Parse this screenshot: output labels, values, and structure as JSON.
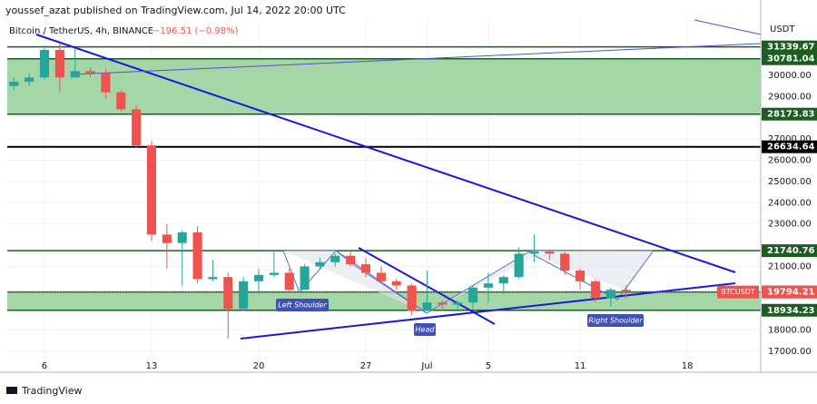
{
  "chart_data": {
    "type": "candlestick",
    "title": "youssef_azat published on TradingView.com, Jul 14, 2022 20:00 UTC",
    "symbol": "Bitcoin / TetherUS, 4h, BINANCE",
    "change": "−196.51 (−0.98%)",
    "currency": "USDT",
    "footer": "TradingView",
    "up_color": "#26a69a",
    "down_color": "#ef5350",
    "x": [
      4,
      5,
      6,
      7,
      8,
      9,
      10,
      11,
      12,
      13,
      14,
      15,
      16,
      17,
      18,
      19,
      20,
      21,
      22,
      23,
      24,
      25,
      26,
      27,
      28,
      29,
      30,
      31,
      32,
      33,
      34,
      35,
      36,
      37,
      38,
      39,
      40,
      41,
      42,
      43,
      44
    ],
    "open": [
      29500,
      29700,
      29900,
      31200,
      29900,
      30200,
      30100,
      29200,
      28400,
      26700,
      22500,
      22100,
      22600,
      20400,
      20500,
      19000,
      20300,
      20600,
      20700,
      19900,
      21000,
      21200,
      21500,
      21100,
      20700,
      20300,
      20100,
      18900,
      19300,
      19200,
      19300,
      20000,
      20200,
      20500,
      21600,
      21700,
      21600,
      20800,
      20300,
      19500,
      19900
    ],
    "high": [
      29900,
      30100,
      31400,
      31500,
      31300,
      30400,
      30300,
      29300,
      28600,
      26900,
      23000,
      22700,
      22900,
      21300,
      20700,
      20500,
      20900,
      21700,
      20900,
      21100,
      21400,
      21600,
      21700,
      21400,
      21000,
      20400,
      20200,
      20800,
      19400,
      19400,
      20100,
      20700,
      20600,
      21900,
      22500,
      21800,
      21700,
      20900,
      20400,
      20000,
      20100
    ],
    "low": [
      29300,
      29500,
      29800,
      29200,
      29900,
      29900,
      28900,
      28300,
      26600,
      22200,
      20900,
      20100,
      20200,
      20300,
      17600,
      18900,
      19700,
      20500,
      19800,
      19900,
      20900,
      21000,
      21000,
      20500,
      20200,
      19900,
      18700,
      18900,
      18900,
      19000,
      19000,
      19300,
      19700,
      20400,
      21200,
      21300,
      20600,
      19900,
      19300,
      19100,
      19500
    ],
    "close": [
      29700,
      29900,
      31200,
      29900,
      30200,
      30100,
      29200,
      28400,
      26700,
      22500,
      22100,
      22600,
      20400,
      20500,
      19000,
      20300,
      20600,
      20700,
      19900,
      21000,
      21200,
      21500,
      21100,
      20700,
      20300,
      20100,
      18900,
      19300,
      19200,
      19300,
      20000,
      20200,
      20500,
      21600,
      21700,
      21600,
      20800,
      20300,
      19500,
      19900,
      19800
    ],
    "xlim": [
      3.57,
      52.8
    ],
    "xticks": [
      6,
      13,
      20,
      27,
      {
        "value": 31,
        "label": "Jul"
      },
      35,
      41,
      48
    ],
    "xtick_labels": [
      {
        "value": 6,
        "label": "6"
      },
      {
        "value": 13,
        "label": "13"
      },
      {
        "value": 20,
        "label": "20"
      },
      {
        "value": 27,
        "label": "27"
      },
      {
        "value": 35,
        "label": "5"
      },
      {
        "value": 41,
        "label": "11"
      },
      {
        "value": 48,
        "label": "18"
      }
    ],
    "ylim": [
      16016,
      32694
    ],
    "yticks": [
      {
        "value": 30000,
        "label": "30000.00"
      },
      {
        "value": 29000,
        "label": "29000.00"
      },
      {
        "value": 27000,
        "label": "27000.00"
      },
      {
        "value": 26000,
        "label": "26000.00"
      },
      {
        "value": 25000,
        "label": "25000.00"
      },
      {
        "value": 24000,
        "label": "24000.00"
      },
      {
        "value": 23000,
        "label": "23000.00"
      },
      {
        "value": 21000,
        "label": "21000.00"
      },
      {
        "value": 18000,
        "label": "18000.00"
      },
      {
        "value": 17000,
        "label": "17000.00"
      }
    ],
    "levels": [
      31339.67,
      30781.04,
      28173.83,
      26634.64,
      21740.76,
      19796.45,
      18934.23
    ],
    "level_colors": [
      "#1b5e20",
      "#1b5e20",
      "#1b5e20",
      "#000000",
      "#1b5e20",
      "#1b5e20",
      "#1b5e20"
    ],
    "zone_color": "#a5d6a7",
    "last_price": 19794.21,
    "last_label": "BTCUSDT",
    "annotations": [
      "Left Shoulder",
      "Head",
      "Right Shoulder"
    ]
  }
}
